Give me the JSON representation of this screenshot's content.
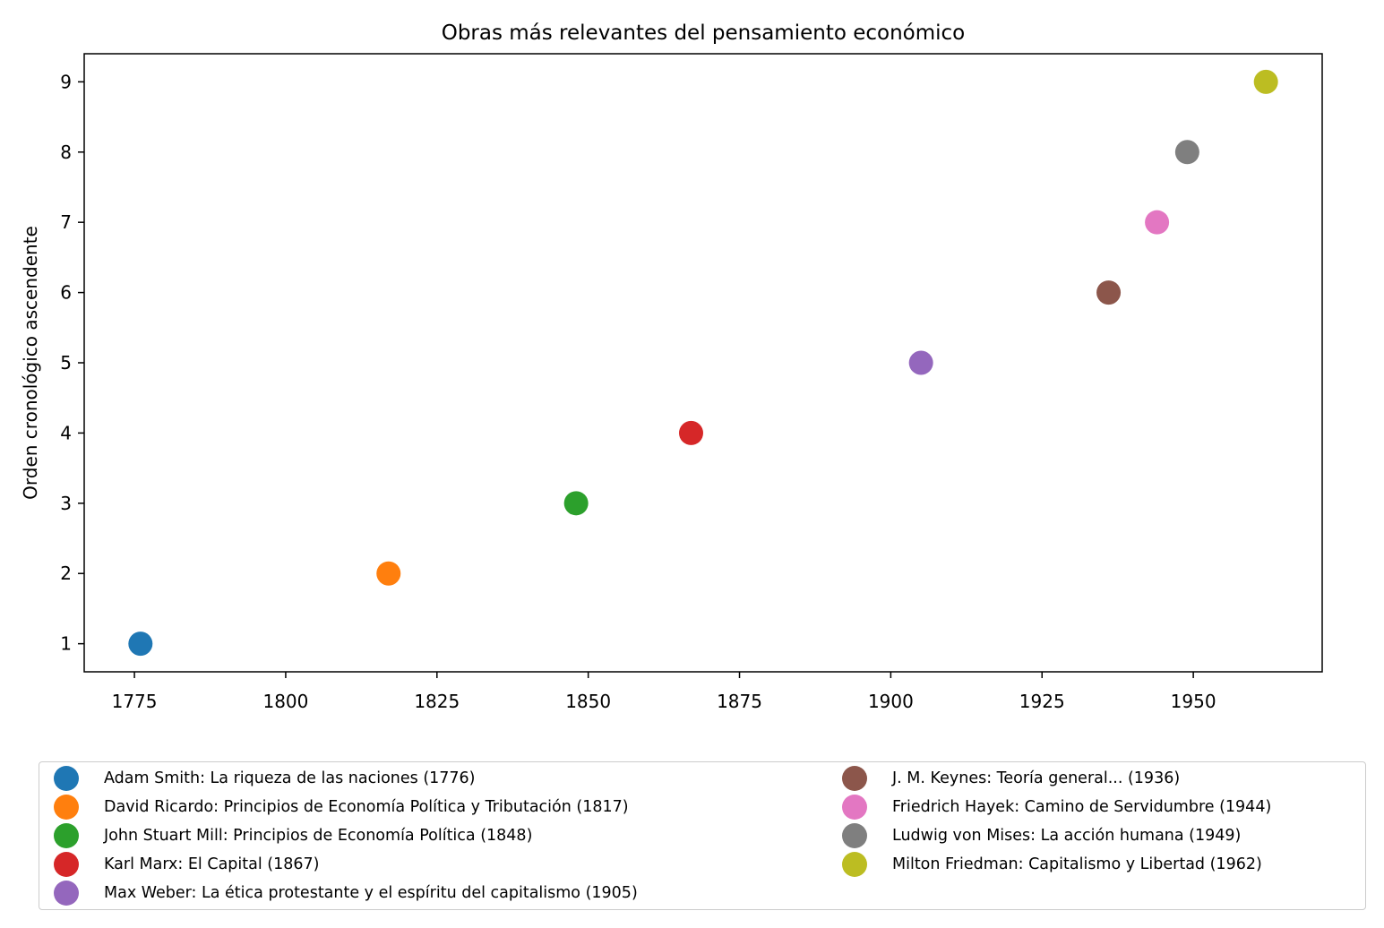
{
  "chart_data": {
    "type": "scatter",
    "title": "Obras más relevantes del pensamiento económico",
    "xlabel": "",
    "ylabel": "Orden cronológico ascendente",
    "xlim": [
      1766.7,
      1971.3
    ],
    "ylim": [
      0.6,
      9.4
    ],
    "xticks": [
      1775,
      1800,
      1825,
      1850,
      1875,
      1900,
      1925,
      1950
    ],
    "yticks": [
      1,
      2,
      3,
      4,
      5,
      6,
      7,
      8,
      9
    ],
    "grid": false,
    "legend_placement": "bottom",
    "legend_columns": 2,
    "series": [
      {
        "name": "Adam Smith: La riqueza de las naciones (1776)",
        "x": 1776,
        "y": 1,
        "color": "#1f77b4"
      },
      {
        "name": "David Ricardo: Principios de Economía Política y Tributación (1817)",
        "x": 1817,
        "y": 2,
        "color": "#ff7f0e"
      },
      {
        "name": "John Stuart Mill: Principios de Economía Política (1848)",
        "x": 1848,
        "y": 3,
        "color": "#2ca02c"
      },
      {
        "name": "Karl Marx: El Capital (1867)",
        "x": 1867,
        "y": 4,
        "color": "#d62728"
      },
      {
        "name": "Max Weber: La ética protestante y el espíritu del capitalismo (1905)",
        "x": 1905,
        "y": 5,
        "color": "#9467bd"
      },
      {
        "name": "J. M. Keynes: Teoría general... (1936)",
        "x": 1936,
        "y": 6,
        "color": "#8c564b"
      },
      {
        "name": "Friedrich Hayek: Camino de Servidumbre (1944)",
        "x": 1944,
        "y": 7,
        "color": "#e377c2"
      },
      {
        "name": "Ludwig von Mises: La acción humana (1949)",
        "x": 1949,
        "y": 8,
        "color": "#7f7f7f"
      },
      {
        "name": "Milton Friedman: Capitalismo y Libertad (1962)",
        "x": 1962,
        "y": 9,
        "color": "#bcbd22"
      }
    ]
  }
}
